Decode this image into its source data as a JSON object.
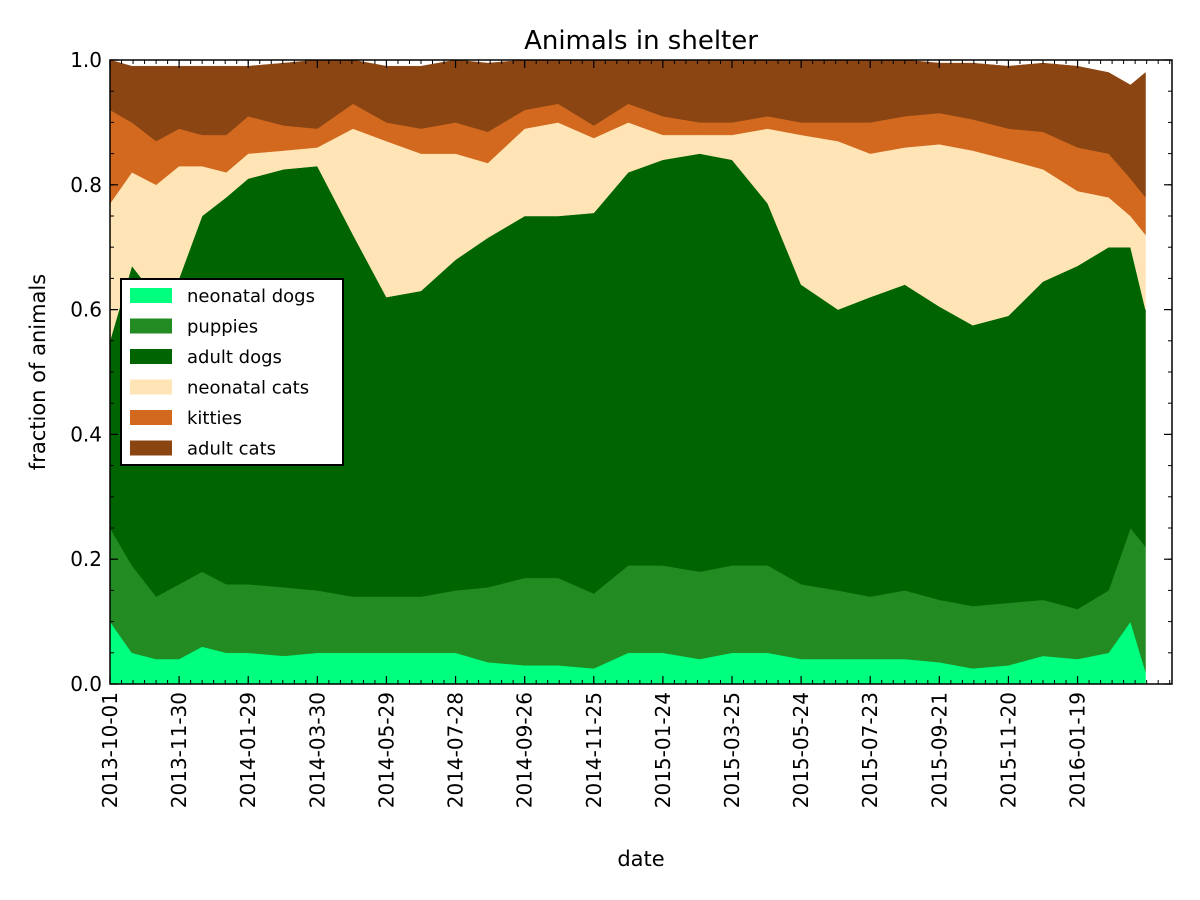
{
  "chart_data": {
    "type": "area",
    "stacked": true,
    "title": "Animals in shelter",
    "xlabel": "date",
    "ylabel": "fraction of animals",
    "ylim": [
      0.0,
      1.0
    ],
    "yticks": [
      "0.0",
      "0.2",
      "0.4",
      "0.6",
      "0.8",
      "1.0"
    ],
    "yticks_values": [
      0.0,
      0.2,
      0.4,
      0.6,
      0.8,
      1.0
    ],
    "x_start_date": "2013-10-01",
    "x_end_date": "2016-03-18",
    "x_axis_end_date": "2016-04-10",
    "xticks": [
      "2013-10-01",
      "2013-11-30",
      "2014-01-29",
      "2014-03-30",
      "2014-05-29",
      "2014-07-28",
      "2014-09-26",
      "2014-11-25",
      "2015-01-24",
      "2015-03-25",
      "2015-05-24",
      "2015-07-23",
      "2015-09-21",
      "2015-11-20",
      "2016-01-19"
    ],
    "legend_position": "center-left",
    "series": [
      {
        "name": "neonatal dogs",
        "color": "#00ff7f",
        "points": [
          [
            "2013-10-01",
            0.1
          ],
          [
            "2013-10-20",
            0.05
          ],
          [
            "2013-11-10",
            0.04
          ],
          [
            "2013-11-30",
            0.04
          ],
          [
            "2013-12-20",
            0.06
          ],
          [
            "2014-01-10",
            0.05
          ],
          [
            "2014-01-29",
            0.05
          ],
          [
            "2014-03-01",
            0.045
          ],
          [
            "2014-03-30",
            0.05
          ],
          [
            "2014-04-30",
            0.05
          ],
          [
            "2014-05-29",
            0.05
          ],
          [
            "2014-06-28",
            0.05
          ],
          [
            "2014-07-28",
            0.05
          ],
          [
            "2014-08-25",
            0.035
          ],
          [
            "2014-09-26",
            0.03
          ],
          [
            "2014-10-25",
            0.03
          ],
          [
            "2014-11-25",
            0.025
          ],
          [
            "2014-12-25",
            0.05
          ],
          [
            "2015-01-24",
            0.05
          ],
          [
            "2015-02-25",
            0.04
          ],
          [
            "2015-03-25",
            0.05
          ],
          [
            "2015-04-25",
            0.05
          ],
          [
            "2015-05-24",
            0.04
          ],
          [
            "2015-06-25",
            0.04
          ],
          [
            "2015-07-23",
            0.04
          ],
          [
            "2015-08-22",
            0.04
          ],
          [
            "2015-09-21",
            0.035
          ],
          [
            "2015-10-20",
            0.025
          ],
          [
            "2015-11-20",
            0.03
          ],
          [
            "2015-12-20",
            0.045
          ],
          [
            "2016-01-19",
            0.04
          ],
          [
            "2016-02-15",
            0.05
          ],
          [
            "2016-03-05",
            0.1
          ],
          [
            "2016-03-18",
            0.02
          ]
        ]
      },
      {
        "name": "puppies",
        "color": "#228b22",
        "points": [
          [
            "2013-10-01",
            0.15
          ],
          [
            "2013-10-20",
            0.14
          ],
          [
            "2013-11-10",
            0.1
          ],
          [
            "2013-11-30",
            0.12
          ],
          [
            "2013-12-20",
            0.12
          ],
          [
            "2014-01-10",
            0.11
          ],
          [
            "2014-01-29",
            0.11
          ],
          [
            "2014-03-01",
            0.11
          ],
          [
            "2014-03-30",
            0.1
          ],
          [
            "2014-04-30",
            0.09
          ],
          [
            "2014-05-29",
            0.09
          ],
          [
            "2014-06-28",
            0.09
          ],
          [
            "2014-07-28",
            0.1
          ],
          [
            "2014-08-25",
            0.12
          ],
          [
            "2014-09-26",
            0.14
          ],
          [
            "2014-10-25",
            0.14
          ],
          [
            "2014-11-25",
            0.12
          ],
          [
            "2014-12-25",
            0.14
          ],
          [
            "2015-01-24",
            0.14
          ],
          [
            "2015-02-25",
            0.14
          ],
          [
            "2015-03-25",
            0.14
          ],
          [
            "2015-04-25",
            0.14
          ],
          [
            "2015-05-24",
            0.12
          ],
          [
            "2015-06-25",
            0.11
          ],
          [
            "2015-07-23",
            0.1
          ],
          [
            "2015-08-22",
            0.11
          ],
          [
            "2015-09-21",
            0.1
          ],
          [
            "2015-10-20",
            0.1
          ],
          [
            "2015-11-20",
            0.1
          ],
          [
            "2015-12-20",
            0.09
          ],
          [
            "2016-01-19",
            0.08
          ],
          [
            "2016-02-15",
            0.1
          ],
          [
            "2016-03-05",
            0.15
          ],
          [
            "2016-03-18",
            0.2
          ]
        ]
      },
      {
        "name": "adult dogs",
        "color": "#006400",
        "points": [
          [
            "2013-10-01",
            0.3
          ],
          [
            "2013-10-20",
            0.48
          ],
          [
            "2013-11-10",
            0.48
          ],
          [
            "2013-11-30",
            0.49
          ],
          [
            "2013-12-20",
            0.57
          ],
          [
            "2014-01-10",
            0.62
          ],
          [
            "2014-01-29",
            0.65
          ],
          [
            "2014-03-01",
            0.67
          ],
          [
            "2014-03-30",
            0.68
          ],
          [
            "2014-04-30",
            0.58
          ],
          [
            "2014-05-29",
            0.48
          ],
          [
            "2014-06-28",
            0.49
          ],
          [
            "2014-07-28",
            0.53
          ],
          [
            "2014-08-25",
            0.56
          ],
          [
            "2014-09-26",
            0.58
          ],
          [
            "2014-10-25",
            0.58
          ],
          [
            "2014-11-25",
            0.61
          ],
          [
            "2014-12-25",
            0.63
          ],
          [
            "2015-01-24",
            0.65
          ],
          [
            "2015-02-25",
            0.67
          ],
          [
            "2015-03-25",
            0.65
          ],
          [
            "2015-04-25",
            0.58
          ],
          [
            "2015-05-24",
            0.48
          ],
          [
            "2015-06-25",
            0.45
          ],
          [
            "2015-07-23",
            0.48
          ],
          [
            "2015-08-22",
            0.49
          ],
          [
            "2015-09-21",
            0.47
          ],
          [
            "2015-10-20",
            0.45
          ],
          [
            "2015-11-20",
            0.46
          ],
          [
            "2015-12-20",
            0.51
          ],
          [
            "2016-01-19",
            0.55
          ],
          [
            "2016-02-15",
            0.55
          ],
          [
            "2016-03-05",
            0.45
          ],
          [
            "2016-03-18",
            0.38
          ]
        ]
      },
      {
        "name": "neonatal cats",
        "color": "#ffe4b5",
        "points": [
          [
            "2013-10-01",
            0.22
          ],
          [
            "2013-10-20",
            0.15
          ],
          [
            "2013-11-10",
            0.18
          ],
          [
            "2013-11-30",
            0.18
          ],
          [
            "2013-12-20",
            0.08
          ],
          [
            "2014-01-10",
            0.04
          ],
          [
            "2014-01-29",
            0.04
          ],
          [
            "2014-03-01",
            0.03
          ],
          [
            "2014-03-30",
            0.03
          ],
          [
            "2014-04-30",
            0.17
          ],
          [
            "2014-05-29",
            0.25
          ],
          [
            "2014-06-28",
            0.22
          ],
          [
            "2014-07-28",
            0.17
          ],
          [
            "2014-08-25",
            0.12
          ],
          [
            "2014-09-26",
            0.14
          ],
          [
            "2014-10-25",
            0.15
          ],
          [
            "2014-11-25",
            0.12
          ],
          [
            "2014-12-25",
            0.08
          ],
          [
            "2015-01-24",
            0.04
          ],
          [
            "2015-02-25",
            0.03
          ],
          [
            "2015-03-25",
            0.04
          ],
          [
            "2015-04-25",
            0.12
          ],
          [
            "2015-05-24",
            0.24
          ],
          [
            "2015-06-25",
            0.27
          ],
          [
            "2015-07-23",
            0.23
          ],
          [
            "2015-08-22",
            0.22
          ],
          [
            "2015-09-21",
            0.26
          ],
          [
            "2015-10-20",
            0.28
          ],
          [
            "2015-11-20",
            0.25
          ],
          [
            "2015-12-20",
            0.18
          ],
          [
            "2016-01-19",
            0.12
          ],
          [
            "2016-02-15",
            0.08
          ],
          [
            "2016-03-05",
            0.05
          ],
          [
            "2016-03-18",
            0.12
          ]
        ]
      },
      {
        "name": "kitties",
        "color": "#d2691e",
        "points": [
          [
            "2013-10-01",
            0.15
          ],
          [
            "2013-10-20",
            0.08
          ],
          [
            "2013-11-10",
            0.07
          ],
          [
            "2013-11-30",
            0.06
          ],
          [
            "2013-12-20",
            0.05
          ],
          [
            "2014-01-10",
            0.06
          ],
          [
            "2014-01-29",
            0.06
          ],
          [
            "2014-03-01",
            0.04
          ],
          [
            "2014-03-30",
            0.03
          ],
          [
            "2014-04-30",
            0.04
          ],
          [
            "2014-05-29",
            0.03
          ],
          [
            "2014-06-28",
            0.04
          ],
          [
            "2014-07-28",
            0.05
          ],
          [
            "2014-08-25",
            0.05
          ],
          [
            "2014-09-26",
            0.03
          ],
          [
            "2014-10-25",
            0.03
          ],
          [
            "2014-11-25",
            0.02
          ],
          [
            "2014-12-25",
            0.03
          ],
          [
            "2015-01-24",
            0.03
          ],
          [
            "2015-02-25",
            0.02
          ],
          [
            "2015-03-25",
            0.02
          ],
          [
            "2015-04-25",
            0.02
          ],
          [
            "2015-05-24",
            0.02
          ],
          [
            "2015-06-25",
            0.03
          ],
          [
            "2015-07-23",
            0.05
          ],
          [
            "2015-08-22",
            0.05
          ],
          [
            "2015-09-21",
            0.05
          ],
          [
            "2015-10-20",
            0.05
          ],
          [
            "2015-11-20",
            0.05
          ],
          [
            "2015-12-20",
            0.06
          ],
          [
            "2016-01-19",
            0.07
          ],
          [
            "2016-02-15",
            0.07
          ],
          [
            "2016-03-05",
            0.06
          ],
          [
            "2016-03-18",
            0.06
          ]
        ]
      },
      {
        "name": "adult cats",
        "color": "#8b4513",
        "points": [
          [
            "2013-10-01",
            0.08
          ],
          [
            "2013-10-20",
            0.09
          ],
          [
            "2013-11-10",
            0.12
          ],
          [
            "2013-11-30",
            0.1
          ],
          [
            "2013-12-20",
            0.11
          ],
          [
            "2014-01-10",
            0.11
          ],
          [
            "2014-01-29",
            0.08
          ],
          [
            "2014-03-01",
            0.1
          ],
          [
            "2014-03-30",
            0.11
          ],
          [
            "2014-04-30",
            0.07
          ],
          [
            "2014-05-29",
            0.09
          ],
          [
            "2014-06-28",
            0.1
          ],
          [
            "2014-07-28",
            0.1
          ],
          [
            "2014-08-25",
            0.11
          ],
          [
            "2014-09-26",
            0.08
          ],
          [
            "2014-10-25",
            0.07
          ],
          [
            "2014-11-25",
            0.11
          ],
          [
            "2014-12-25",
            0.07
          ],
          [
            "2015-01-24",
            0.09
          ],
          [
            "2015-02-25",
            0.1
          ],
          [
            "2015-03-25",
            0.1
          ],
          [
            "2015-04-25",
            0.1
          ],
          [
            "2015-05-24",
            0.1
          ],
          [
            "2015-06-25",
            0.1
          ],
          [
            "2015-07-23",
            0.1
          ],
          [
            "2015-08-22",
            0.09
          ],
          [
            "2015-09-21",
            0.08
          ],
          [
            "2015-10-20",
            0.09
          ],
          [
            "2015-11-20",
            0.1
          ],
          [
            "2015-12-20",
            0.11
          ],
          [
            "2016-01-19",
            0.13
          ],
          [
            "2016-02-15",
            0.13
          ],
          [
            "2016-03-05",
            0.15
          ],
          [
            "2016-03-18",
            0.2
          ]
        ]
      }
    ]
  }
}
